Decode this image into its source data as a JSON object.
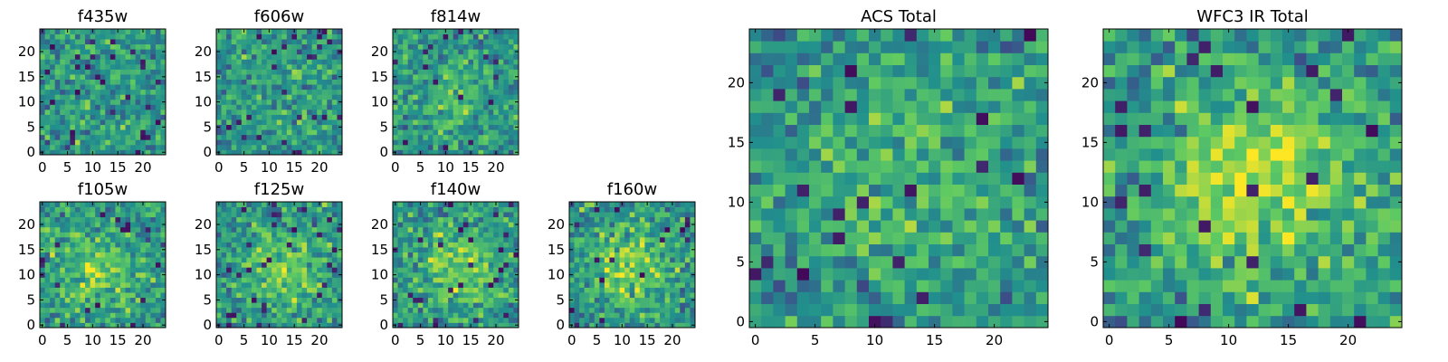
{
  "figure": {
    "type": "image-grid",
    "colormap": [
      "#440154",
      "#3b528b",
      "#21908d",
      "#5dc963",
      "#fde725"
    ]
  },
  "chart_data": [
    {
      "id": "f435w",
      "type": "heatmap",
      "title": "f435w",
      "grid_size": 25,
      "xticks": [
        "0",
        "5",
        "10",
        "15",
        "20"
      ],
      "yticks": [
        "0",
        "5",
        "10",
        "15",
        "20"
      ],
      "xlim": [
        0,
        25
      ],
      "ylim": [
        0,
        25
      ],
      "central_peak": 0.0,
      "peak_center": [
        12,
        12
      ],
      "noise_seed": 11
    },
    {
      "id": "f606w",
      "type": "heatmap",
      "title": "f606w",
      "grid_size": 25,
      "xticks": [
        "0",
        "5",
        "10",
        "15",
        "20"
      ],
      "yticks": [
        "0",
        "5",
        "10",
        "15",
        "20"
      ],
      "xlim": [
        0,
        25
      ],
      "ylim": [
        0,
        25
      ],
      "central_peak": 0.1,
      "peak_center": [
        12,
        12
      ],
      "noise_seed": 23
    },
    {
      "id": "f814w",
      "type": "heatmap",
      "title": "f814w",
      "grid_size": 25,
      "xticks": [
        "0",
        "5",
        "10",
        "15",
        "20"
      ],
      "yticks": [
        "0",
        "5",
        "10",
        "15",
        "20"
      ],
      "xlim": [
        0,
        25
      ],
      "ylim": [
        0,
        25
      ],
      "central_peak": 0.25,
      "peak_center": [
        13,
        12
      ],
      "noise_seed": 37
    },
    {
      "id": "f105w",
      "type": "heatmap",
      "title": "f105w",
      "grid_size": 25,
      "xticks": [
        "0",
        "5",
        "10",
        "15",
        "20"
      ],
      "yticks": [
        "0",
        "5",
        "10",
        "15",
        "20"
      ],
      "xlim": [
        0,
        25
      ],
      "ylim": [
        0,
        25
      ],
      "central_peak": 0.4,
      "peak_center": [
        11,
        10
      ],
      "noise_seed": 41
    },
    {
      "id": "f125w",
      "type": "heatmap",
      "title": "f125w",
      "grid_size": 25,
      "xticks": [
        "0",
        "5",
        "10",
        "15",
        "20"
      ],
      "yticks": [
        "0",
        "5",
        "10",
        "15",
        "20"
      ],
      "xlim": [
        0,
        25
      ],
      "ylim": [
        0,
        25
      ],
      "central_peak": 0.4,
      "peak_center": [
        13,
        11
      ],
      "noise_seed": 53
    },
    {
      "id": "f140w",
      "type": "heatmap",
      "title": "f140w",
      "grid_size": 25,
      "xticks": [
        "0",
        "5",
        "10",
        "15",
        "20"
      ],
      "yticks": [
        "0",
        "5",
        "10",
        "15",
        "20"
      ],
      "xlim": [
        0,
        25
      ],
      "ylim": [
        0,
        25
      ],
      "central_peak": 0.45,
      "peak_center": [
        13,
        11
      ],
      "noise_seed": 67
    },
    {
      "id": "f160w",
      "type": "heatmap",
      "title": "f160w",
      "grid_size": 25,
      "xticks": [
        "0",
        "5",
        "10",
        "15",
        "20"
      ],
      "yticks": [
        "0",
        "5",
        "10",
        "15",
        "20"
      ],
      "xlim": [
        0,
        25
      ],
      "ylim": [
        0,
        25
      ],
      "central_peak": 0.45,
      "peak_center": [
        12,
        12
      ],
      "noise_seed": 79
    },
    {
      "id": "acs-total",
      "type": "heatmap",
      "title": "ACS Total",
      "grid_size": 25,
      "xticks": [
        "0",
        "5",
        "10",
        "15",
        "20"
      ],
      "yticks": [
        "0",
        "5",
        "10",
        "15",
        "20"
      ],
      "xlim": [
        0,
        25
      ],
      "ylim": [
        0,
        25
      ],
      "central_peak": 0.3,
      "peak_center": [
        12,
        13
      ],
      "noise_seed": 83
    },
    {
      "id": "wfc3-ir-total",
      "type": "heatmap",
      "title": "WFC3 IR Total",
      "grid_size": 25,
      "xticks": [
        "0",
        "5",
        "10",
        "15",
        "20"
      ],
      "yticks": [
        "0",
        "5",
        "10",
        "15",
        "20"
      ],
      "xlim": [
        0,
        25
      ],
      "ylim": [
        0,
        25
      ],
      "central_peak": 0.6,
      "peak_center": [
        12,
        12
      ],
      "noise_seed": 97
    }
  ]
}
